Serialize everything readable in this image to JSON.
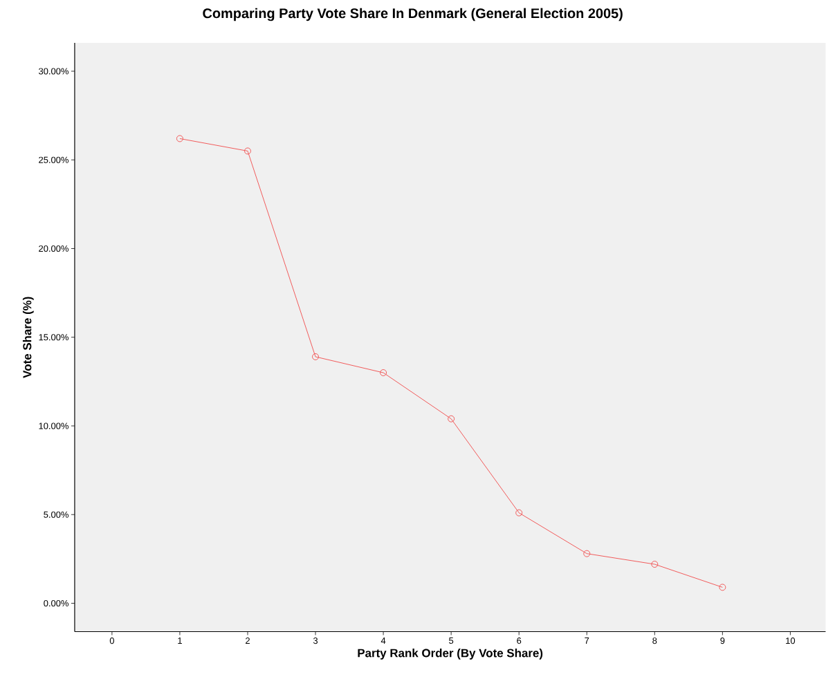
{
  "chart_data": {
    "type": "line",
    "title": "Comparing Party Vote Share In Denmark (General Election 2005)",
    "xlabel": "Party Rank Order (By Vote Share)",
    "ylabel": "Vote Share (%)",
    "x": [
      1,
      2,
      3,
      4,
      5,
      6,
      7,
      8,
      9
    ],
    "series": [
      {
        "color": "#f25a5a",
        "values": [
          26.2,
          25.5,
          13.9,
          13.0,
          10.4,
          5.1,
          2.8,
          2.2,
          0.9
        ]
      }
    ],
    "xlim": [
      -0.55,
      10.52
    ],
    "xticks": [
      0,
      1,
      2,
      3,
      4,
      5,
      6,
      7,
      8,
      9,
      10
    ],
    "ylim": [
      -1.6,
      31.6
    ],
    "yticks": [
      {
        "value": 0,
        "label": "0.00%"
      },
      {
        "value": 5,
        "label": "5.00%"
      },
      {
        "value": 10,
        "label": "10.00%"
      },
      {
        "value": 15,
        "label": "15.00%"
      },
      {
        "value": 20,
        "label": "20.00%"
      },
      {
        "value": 25,
        "label": "25.00%"
      },
      {
        "value": 30,
        "label": "30.00%"
      }
    ],
    "marker": "circle",
    "line_style": "solid"
  }
}
